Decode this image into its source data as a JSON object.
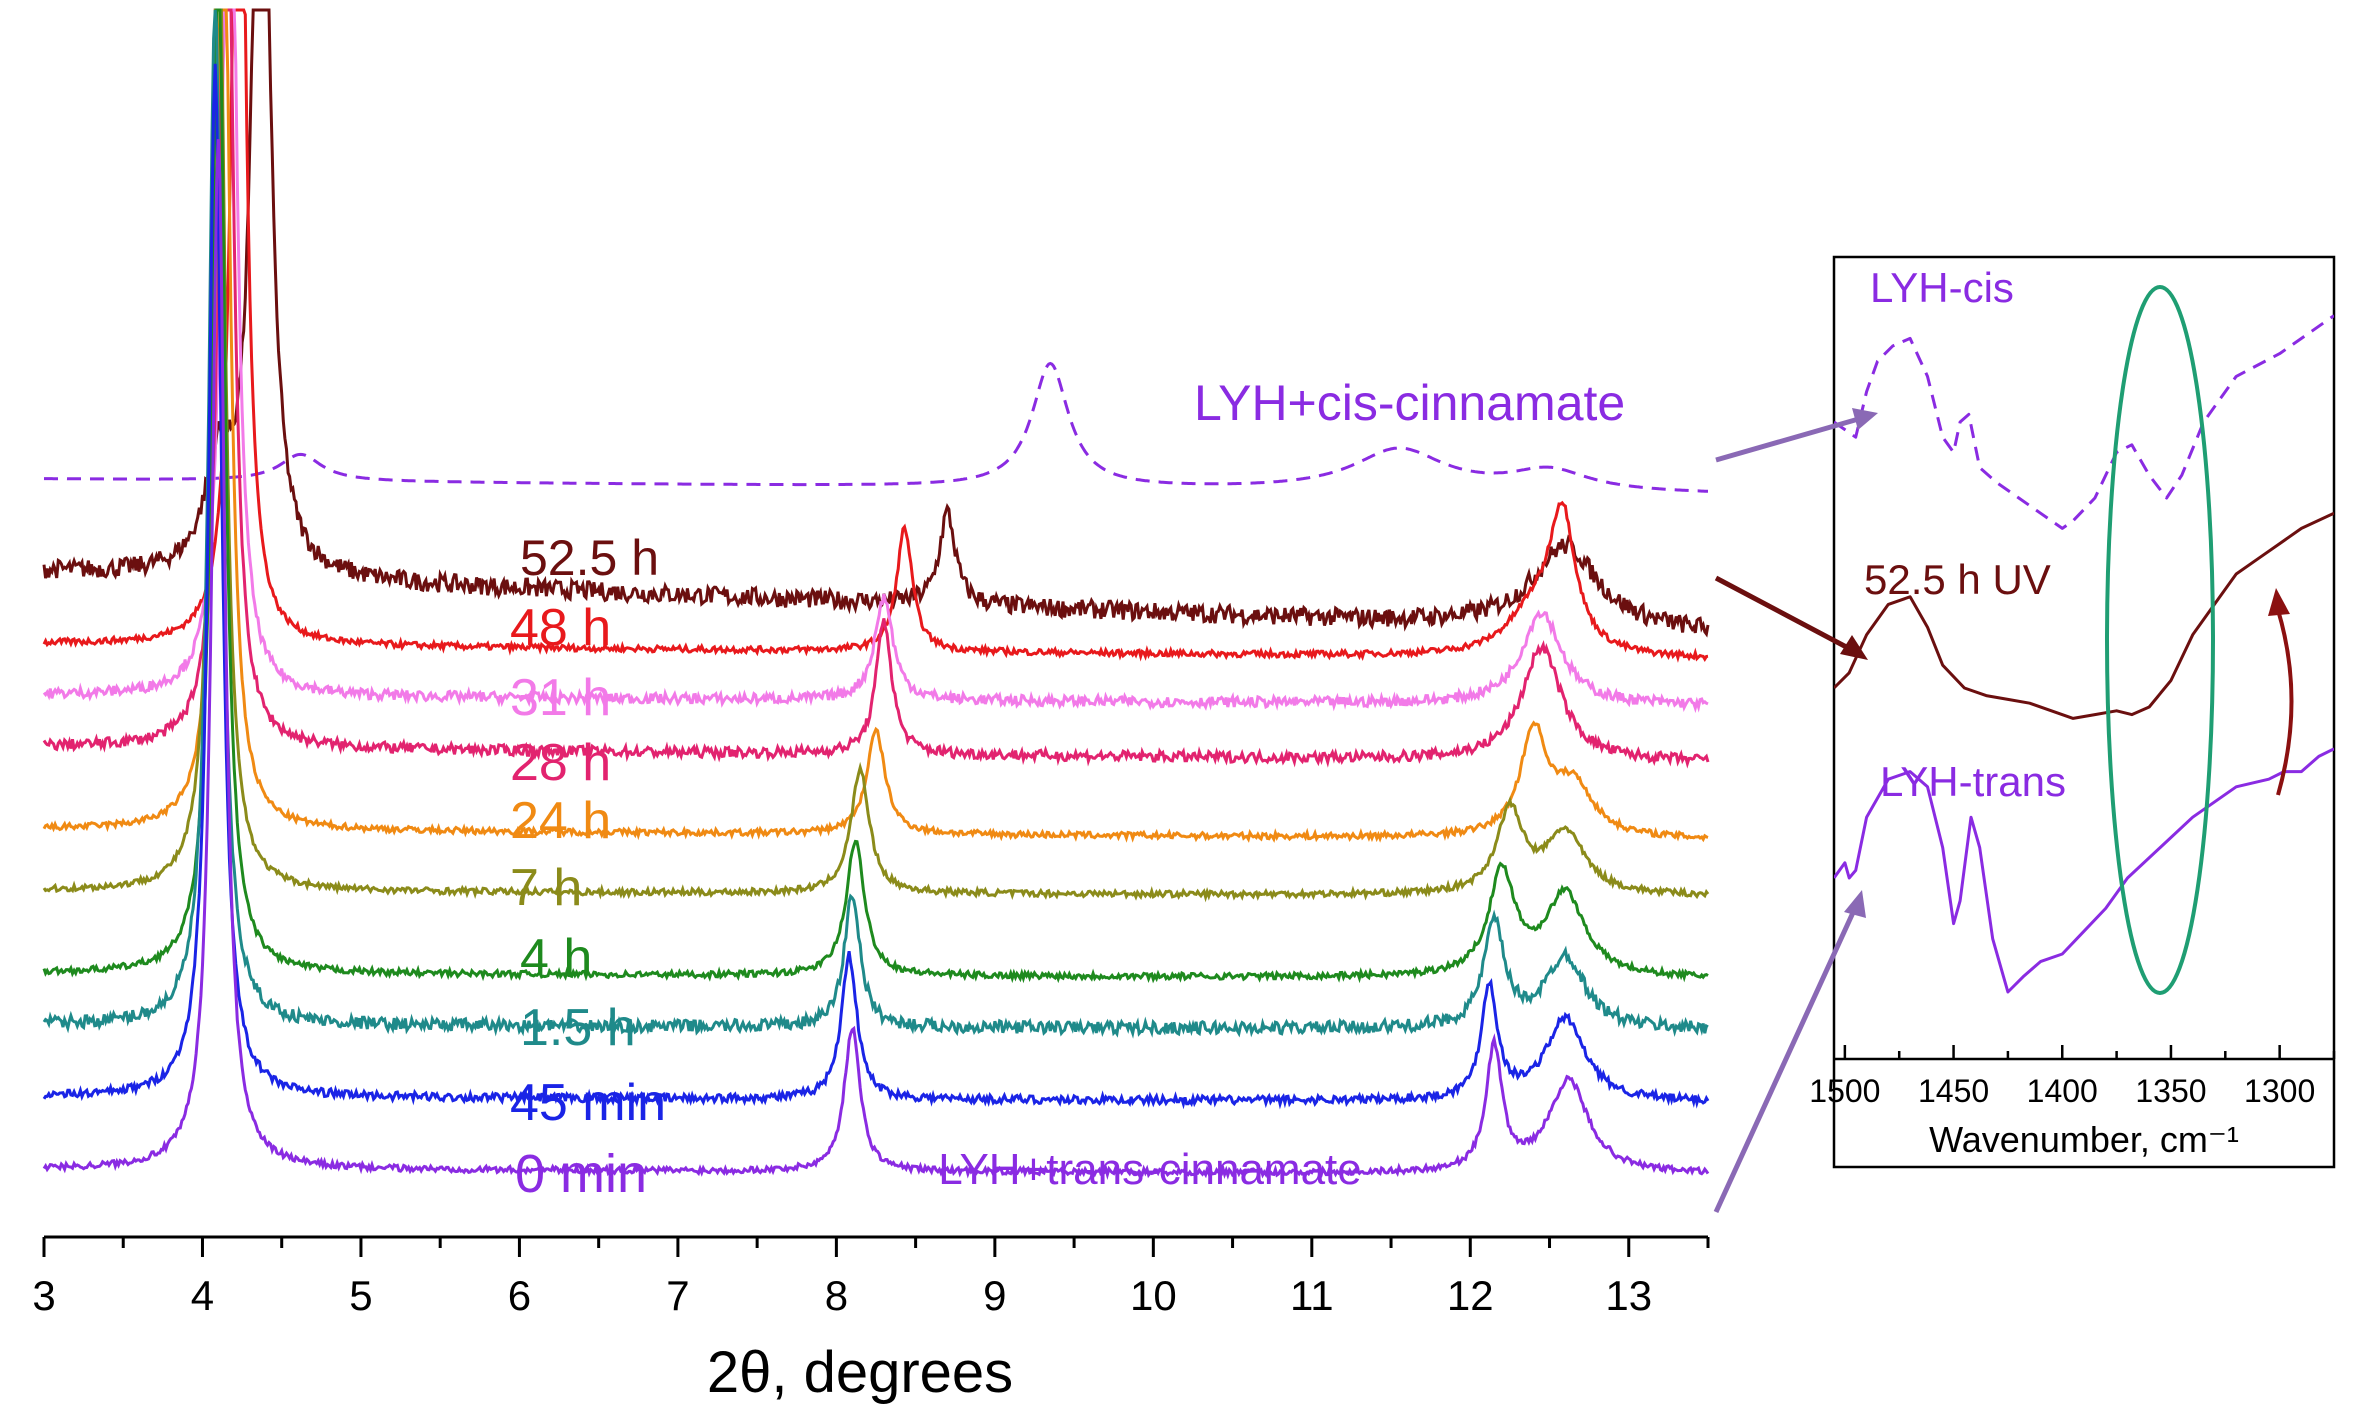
{
  "chart_data": [
    {
      "type": "line",
      "title": "",
      "xlabel": "2θ, degrees",
      "ylabel": "",
      "xlim": [
        3,
        13.5
      ],
      "ylim": [
        0,
        100
      ],
      "x_ticks": [
        "3",
        "4",
        "5",
        "6",
        "7",
        "8",
        "9",
        "10",
        "11",
        "12",
        "13"
      ],
      "grid": false,
      "legend": "none",
      "series": [
        {
          "name": "LYH+cis-cinnamate",
          "color": "#8a2be2",
          "dashed": true,
          "baseline": 70,
          "slope": 1.5,
          "noise": 0,
          "label_color": "#8a2be2",
          "peaks": [
            [
              4.62,
              2.6,
              0.16
            ],
            [
              9.35,
              12,
              0.14
            ],
            [
              11.55,
              4,
              0.35
            ],
            [
              12.5,
              2,
              0.3
            ]
          ]
        },
        {
          "name": "52.5 h",
          "color": "#6b0f0f",
          "dashed": false,
          "baseline": 61,
          "slope": 6,
          "noise": 0.9,
          "label_color": "#6b0f0f",
          "peaks": [
            [
              4.37,
              95,
              0.06
            ],
            [
              4.1,
              10,
              0.1
            ],
            [
              8.7,
              9,
              0.06
            ],
            [
              12.6,
              8,
              0.25
            ]
          ]
        },
        {
          "name": "48 h",
          "color": "#e8191c",
          "dashed": false,
          "baseline": 54,
          "slope": 1.5,
          "noise": 0.3,
          "label_color": "#e8191c",
          "peaks": [
            [
              4.23,
              100,
              0.05
            ],
            [
              8.43,
              12,
              0.06
            ],
            [
              12.58,
              13,
              0.1
            ],
            [
              12.4,
              4,
              0.2
            ]
          ]
        },
        {
          "name": "31 h",
          "color": "#f27ae8",
          "dashed": false,
          "baseline": 49,
          "slope": 1,
          "noise": 0.5,
          "label_color": "#f27ae8",
          "peaks": [
            [
              4.17,
              100,
              0.05
            ],
            [
              8.3,
              10,
              0.07
            ],
            [
              12.45,
              9,
              0.15
            ]
          ]
        },
        {
          "name": "28 h",
          "color": "#e2236f",
          "dashed": false,
          "baseline": 44,
          "slope": 1.5,
          "noise": 0.5,
          "label_color": "#e2236f",
          "peaks": [
            [
              4.15,
              100,
              0.05
            ],
            [
              8.3,
              13,
              0.06
            ],
            [
              12.45,
              11,
              0.15
            ]
          ]
        },
        {
          "name": "24 h",
          "color": "#f08a13",
          "dashed": false,
          "baseline": 36,
          "slope": 1,
          "noise": 0.3,
          "label_color": "#f08a13",
          "peaks": [
            [
              4.13,
              100,
              0.05
            ],
            [
              8.25,
              10,
              0.07
            ],
            [
              12.4,
              10,
              0.1
            ],
            [
              12.65,
              5,
              0.15
            ]
          ]
        },
        {
          "name": "7 h",
          "color": "#8b8b1a",
          "dashed": false,
          "baseline": 30,
          "slope": 0.5,
          "noise": 0.3,
          "label_color": "#8b8b1a",
          "peaks": [
            [
              4.1,
              100,
              0.05
            ],
            [
              8.15,
              12,
              0.07
            ],
            [
              12.25,
              8,
              0.1
            ],
            [
              12.6,
              6,
              0.15
            ]
          ]
        },
        {
          "name": "4 h",
          "color": "#1e8a1e",
          "dashed": false,
          "baseline": 22,
          "slope": 0.5,
          "noise": 0.3,
          "label_color": "#1e8a1e",
          "peaks": [
            [
              4.1,
              100,
              0.05
            ],
            [
              8.12,
              13,
              0.07
            ],
            [
              12.2,
              10,
              0.1
            ],
            [
              12.6,
              8,
              0.15
            ]
          ]
        },
        {
          "name": "1.5 h",
          "color": "#1f8a8a",
          "dashed": false,
          "baseline": 17,
          "slope": 0.5,
          "noise": 0.6,
          "label_color": "#1f8a8a",
          "peaks": [
            [
              4.08,
              100,
              0.05
            ],
            [
              8.1,
              13,
              0.06
            ],
            [
              12.15,
              10,
              0.08
            ],
            [
              12.6,
              7,
              0.15
            ]
          ]
        },
        {
          "name": "45 min",
          "color": "#1a24e6",
          "dashed": false,
          "baseline": 10,
          "slope": 0.5,
          "noise": 0.4,
          "label_color": "#1a24e6",
          "peaks": [
            [
              4.08,
              100,
              0.05
            ],
            [
              8.08,
              14,
              0.06
            ],
            [
              12.12,
              11,
              0.06
            ],
            [
              12.6,
              8,
              0.15
            ]
          ]
        },
        {
          "name": "0 min",
          "color": "#8a2be2",
          "dashed": false,
          "baseline": 3,
          "slope": 0.5,
          "noise": 0.3,
          "label_color": "#8a2be2",
          "peaks": [
            [
              4.1,
              100,
              0.05
            ],
            [
              8.1,
              14,
              0.06
            ],
            [
              12.15,
              12,
              0.06
            ],
            [
              12.62,
              9,
              0.15
            ]
          ]
        }
      ],
      "annotations": [
        "LYH+trans-cinnamate"
      ]
    },
    {
      "type": "line",
      "title": "",
      "xlabel": "Wavenumber, cm⁻¹",
      "ylabel": "",
      "xlim": [
        1505,
        1275
      ],
      "ylim": [
        0,
        100
      ],
      "x_ticks": [
        "1500",
        "1450",
        "1400",
        "1350",
        "1300"
      ],
      "legend": "none",
      "series": [
        {
          "name": "LYH-cis",
          "color": "#8a2be2",
          "dashed": true,
          "points": [
            [
              1505,
              80
            ],
            [
              1500,
              79
            ],
            [
              1495,
              78
            ],
            [
              1490,
              84
            ],
            [
              1485,
              88
            ],
            [
              1478,
              90
            ],
            [
              1470,
              91
            ],
            [
              1462,
              86
            ],
            [
              1455,
              78
            ],
            [
              1450,
              76
            ],
            [
              1447,
              80
            ],
            [
              1443,
              81
            ],
            [
              1438,
              74
            ],
            [
              1430,
              72
            ],
            [
              1420,
              70
            ],
            [
              1410,
              68
            ],
            [
              1400,
              66
            ],
            [
              1395,
              67
            ],
            [
              1385,
              70
            ],
            [
              1375,
              76
            ],
            [
              1368,
              77
            ],
            [
              1360,
              73
            ],
            [
              1352,
              70
            ],
            [
              1345,
              73
            ],
            [
              1335,
              80
            ],
            [
              1320,
              86
            ],
            [
              1300,
              89
            ],
            [
              1285,
              92
            ],
            [
              1275,
              94
            ]
          ]
        },
        {
          "name": "52.5 h UV",
          "color": "#6b0f0f",
          "dashed": false,
          "points": [
            [
              1505,
              45
            ],
            [
              1498,
              47
            ],
            [
              1490,
              52
            ],
            [
              1480,
              56
            ],
            [
              1470,
              57
            ],
            [
              1462,
              53
            ],
            [
              1455,
              48
            ],
            [
              1445,
              45
            ],
            [
              1435,
              44
            ],
            [
              1425,
              43.5
            ],
            [
              1415,
              43
            ],
            [
              1405,
              42
            ],
            [
              1395,
              41
            ],
            [
              1385,
              41.5
            ],
            [
              1375,
              42
            ],
            [
              1368,
              41.5
            ],
            [
              1360,
              42.5
            ],
            [
              1350,
              46
            ],
            [
              1340,
              52
            ],
            [
              1330,
              56
            ],
            [
              1320,
              60
            ],
            [
              1310,
              62
            ],
            [
              1300,
              64
            ],
            [
              1290,
              66
            ],
            [
              1275,
              68
            ]
          ]
        },
        {
          "name": "LYH-trans",
          "color": "#8a2be2",
          "dashed": false,
          "points": [
            [
              1505,
              20
            ],
            [
              1500,
              22
            ],
            [
              1498,
              20
            ],
            [
              1495,
              21
            ],
            [
              1490,
              28
            ],
            [
              1480,
              33
            ],
            [
              1470,
              34
            ],
            [
              1462,
              32
            ],
            [
              1455,
              24
            ],
            [
              1450,
              14
            ],
            [
              1447,
              17
            ],
            [
              1442,
              28
            ],
            [
              1438,
              24
            ],
            [
              1432,
              12
            ],
            [
              1425,
              5
            ],
            [
              1418,
              7
            ],
            [
              1410,
              9
            ],
            [
              1400,
              10
            ],
            [
              1390,
              13
            ],
            [
              1380,
              16
            ],
            [
              1370,
              20
            ],
            [
              1355,
              24
            ],
            [
              1340,
              28
            ],
            [
              1320,
              32
            ],
            [
              1305,
              33
            ],
            [
              1298,
              34
            ],
            [
              1290,
              34
            ],
            [
              1282,
              36
            ],
            [
              1275,
              37
            ]
          ]
        }
      ],
      "annotations": []
    }
  ]
}
